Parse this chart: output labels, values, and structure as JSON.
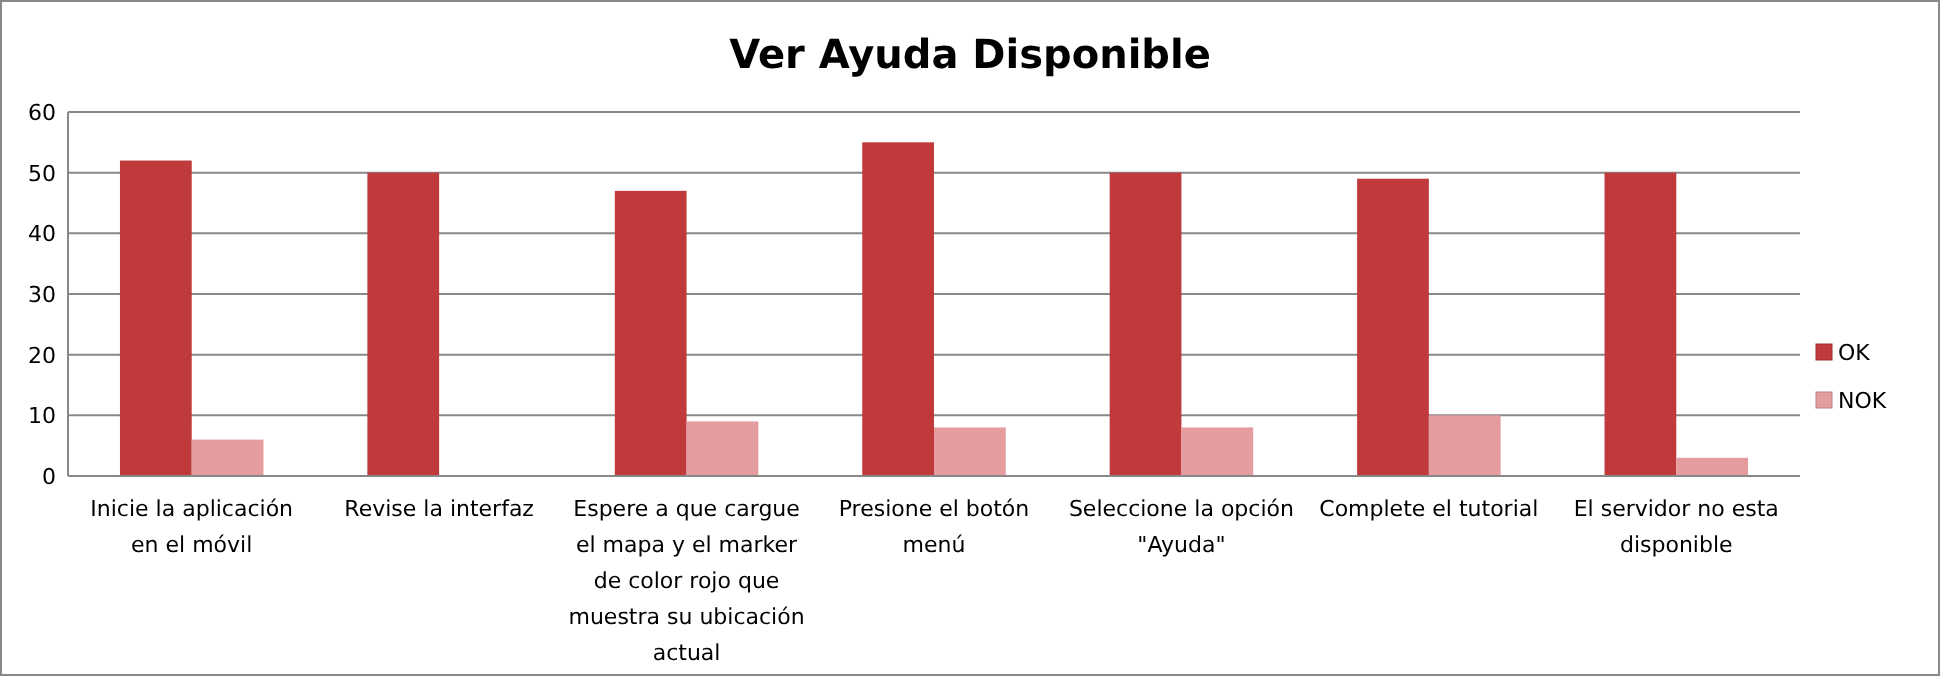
{
  "chart_data": {
    "type": "bar",
    "title": "Ver Ayuda Disponible",
    "categories": [
      "Inicie la aplicación en el móvil",
      "Revise la interfaz",
      "Espere a que cargue el mapa y el marker de color rojo que muestra su ubicación actual",
      "Presione el botón menú",
      "Seleccione la opción \"Ayuda\"",
      "Complete el tutorial",
      "El servidor no esta disponible"
    ],
    "series": [
      {
        "name": "OK",
        "color": "#c0393b",
        "values": [
          52,
          50,
          47,
          55,
          50,
          49,
          50
        ]
      },
      {
        "name": "NOK",
        "color": "#e49c9e",
        "values": [
          6,
          0,
          9,
          8,
          8,
          10,
          3
        ]
      }
    ],
    "ylim": [
      0,
      60
    ],
    "yticks": [
      0,
      10,
      20,
      30,
      40,
      50,
      60
    ],
    "grid": "y",
    "legend": "right"
  }
}
